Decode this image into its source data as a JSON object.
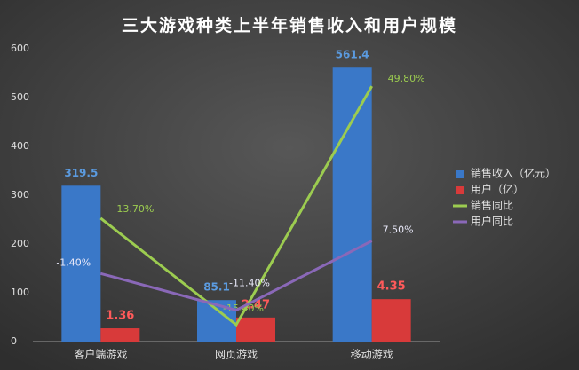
{
  "chart_data": {
    "type": "bar-line",
    "title": "三大游戏种类上半年销售收入和用户规模",
    "categories": [
      "客户端游戏",
      "网页游戏",
      "移动游戏"
    ],
    "series": [
      {
        "name": "销售收入（亿元）",
        "type": "bar",
        "color": "#3a78c8",
        "values": [
          319.5,
          85.1,
          561.4
        ]
      },
      {
        "name": "用户（亿）",
        "type": "bar",
        "color": "#d83a3a",
        "axis": "y2",
        "values": [
          1.36,
          2.47,
          4.35
        ]
      },
      {
        "name": "销售同比",
        "type": "line",
        "color": "#9ccc50",
        "axis": "y3",
        "values": [
          13.7,
          -15.4,
          49.8
        ],
        "value_labels": [
          "13.70%",
          "-15.40%",
          "49.80%"
        ]
      },
      {
        "name": "用户同比",
        "type": "line",
        "color": "#8a68b8",
        "axis": "y3",
        "values": [
          -1.4,
          -11.4,
          7.5
        ],
        "value_labels": [
          "-1.40%",
          "-11.40%",
          "7.50%"
        ]
      }
    ],
    "ylim": [
      0,
      600
    ],
    "yticks": [
      0,
      100,
      200,
      300,
      400,
      500,
      600
    ],
    "y2lim": [
      0,
      30
    ],
    "y3lim": [
      -20,
      60
    ],
    "grid": false,
    "legend": "right"
  }
}
